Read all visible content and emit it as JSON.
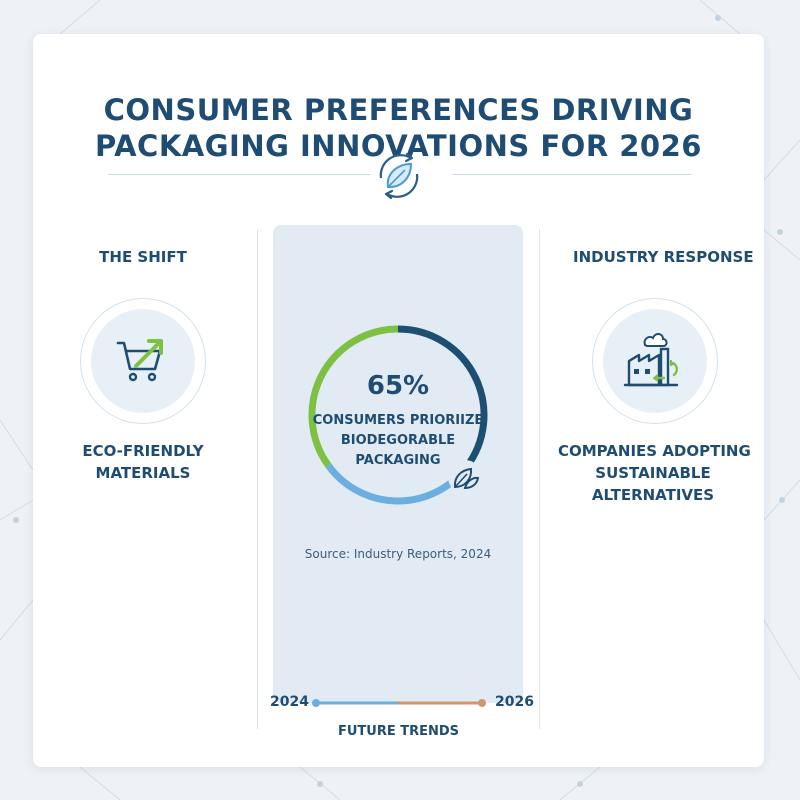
{
  "title": {
    "line1": "CONSUMER PREFERENCES DRIVING",
    "line2": "PACKAGING INNOVATIONS FOR 2026"
  },
  "header_icon": "leaf-recycle-icon",
  "left": {
    "heading": "THE SHIFT",
    "icon": "shopping-cart-trend-icon",
    "caption_line1": "ECO-FRIENDLY",
    "caption_line2": "MATERIALS"
  },
  "center": {
    "percent_label": "65%",
    "stat_value": 65,
    "label_line1": "CONSUMERS PRIORIIZE",
    "label_line2": "BIODEGORABLE",
    "label_line3": "PACKAGING",
    "source": "Source: Industry Reports, 2024",
    "colors": {
      "green": "#7dc043",
      "navy": "#1d4f73",
      "blue": "#6aafe0"
    }
  },
  "right": {
    "heading": "INDUSTRY RESPONSE",
    "icon": "factory-recycle-icon",
    "caption_line1": "COMPANIES ADOPTING",
    "caption_line2": "SUSTAINABLE",
    "caption_line3": "ALTERNATIVES"
  },
  "timeline": {
    "start_year": "2024",
    "end_year": "2026",
    "label": "FUTURE TRENDS",
    "colors": {
      "start": "#6aafe0",
      "end": "#d4956a"
    }
  }
}
